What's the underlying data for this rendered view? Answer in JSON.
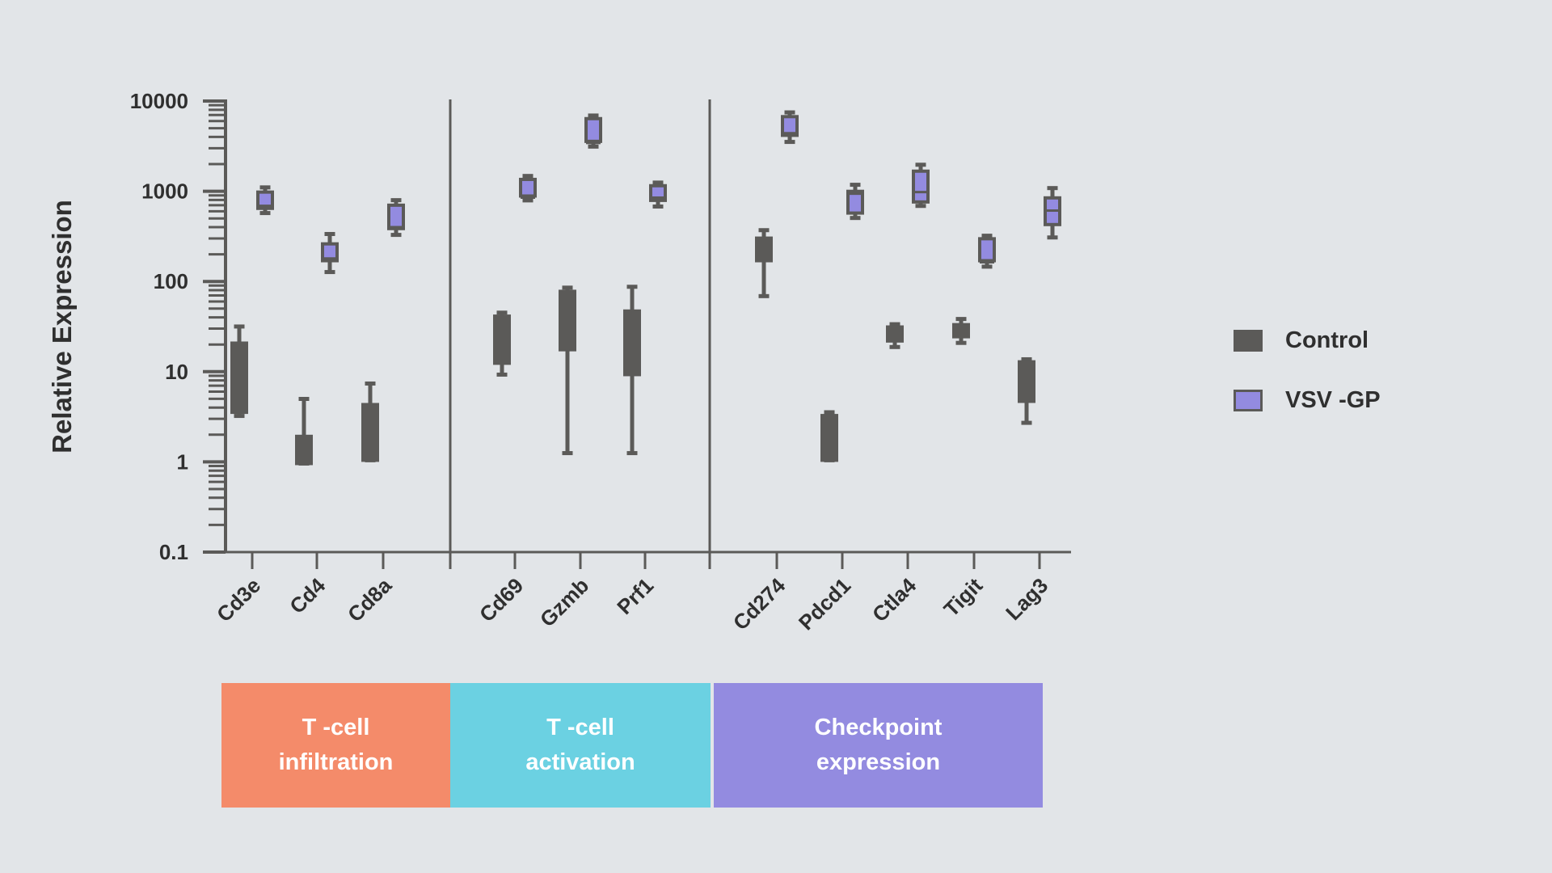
{
  "chart_data": {
    "type": "boxplot",
    "ylabel": "Relative Expression",
    "yscale": "log",
    "ylim": [
      0.1,
      10000
    ],
    "yticks": [
      "0.1",
      "1",
      "10",
      "100",
      "1000",
      "10000"
    ],
    "grid": false,
    "legend_position": "right",
    "categories": [
      "Cd3e",
      "Cd4",
      "Cd8a",
      "Cd69",
      "Gzmb",
      "Prf1",
      "Cd274",
      "Pdcd1",
      "Ctla4",
      "Tigit",
      "Lag3"
    ],
    "groups": [
      {
        "label_line1": "T -cell",
        "label_line2": "infiltration",
        "color": "#F48B6A",
        "categories": [
          "Cd3e",
          "Cd4",
          "Cd8a"
        ]
      },
      {
        "label_line1": "T -cell",
        "label_line2": "activation",
        "color": "#6BD1E2",
        "categories": [
          "Cd69",
          "Gzmb",
          "Prf1"
        ]
      },
      {
        "label_line1": "Checkpoint",
        "label_line2": "expression",
        "color": "#938BE0",
        "categories": [
          "Cd274",
          "Pdcd1",
          "Ctla4",
          "Tigit",
          "Lag3"
        ]
      }
    ],
    "series": [
      {
        "name": "Control",
        "color": "#5B5A58",
        "boxes": [
          {
            "min": 3.1,
            "q1": 3.4,
            "q3": 21.6,
            "max": 33
          },
          {
            "min": 0.92,
            "q1": 0.92,
            "q3": 2.0,
            "max": 5.2
          },
          {
            "min": 1.0,
            "q1": 1.0,
            "q3": 4.5,
            "max": 7.7
          },
          {
            "min": 8.9,
            "q1": 11.9,
            "q3": 43,
            "max": 47
          },
          {
            "min": 1.2,
            "q1": 16.8,
            "q3": 81,
            "max": 89
          },
          {
            "min": 1.2,
            "q1": 8.9,
            "q3": 49,
            "max": 91
          },
          {
            "min": 66,
            "q1": 163,
            "q3": 315,
            "max": 386
          },
          {
            "min": 1.0,
            "q1": 1.0,
            "q3": 3.4,
            "max": 3.7
          },
          {
            "min": 18,
            "q1": 21,
            "q3": 32.6,
            "max": 35
          },
          {
            "min": 20,
            "q1": 23.4,
            "q3": 34.6,
            "max": 40
          },
          {
            "min": 2.6,
            "q1": 4.5,
            "q3": 13.4,
            "max": 14.3
          }
        ]
      },
      {
        "name": "VSV -GP",
        "color": "#938BE0",
        "boxes": [
          {
            "min": 550,
            "q1": 620,
            "median": 690,
            "q3": 1020,
            "max": 1150
          },
          {
            "min": 122,
            "q1": 163,
            "median": 180,
            "q3": 272,
            "max": 350
          },
          {
            "min": 315,
            "q1": 370,
            "median": 400,
            "q3": 730,
            "max": 830
          },
          {
            "min": 760,
            "q1": 850,
            "median": 850,
            "q3": 1410,
            "max": 1540
          },
          {
            "min": 3000,
            "q1": 3430,
            "median": 3430,
            "q3": 6650,
            "max": 7200
          },
          {
            "min": 650,
            "q1": 760,
            "median": 850,
            "q3": 1200,
            "max": 1300
          },
          {
            "min": 3380,
            "q1": 4000,
            "median": 4400,
            "q3": 7000,
            "max": 7800
          },
          {
            "min": 485,
            "q1": 550,
            "median": 940,
            "q3": 1040,
            "max": 1230
          },
          {
            "min": 660,
            "q1": 730,
            "median": 980,
            "q3": 1740,
            "max": 2050
          },
          {
            "min": 140,
            "q1": 163,
            "median": 163,
            "q3": 310,
            "max": 335
          },
          {
            "min": 295,
            "q1": 410,
            "median": 610,
            "q3": 880,
            "max": 1130
          }
        ]
      }
    ]
  }
}
